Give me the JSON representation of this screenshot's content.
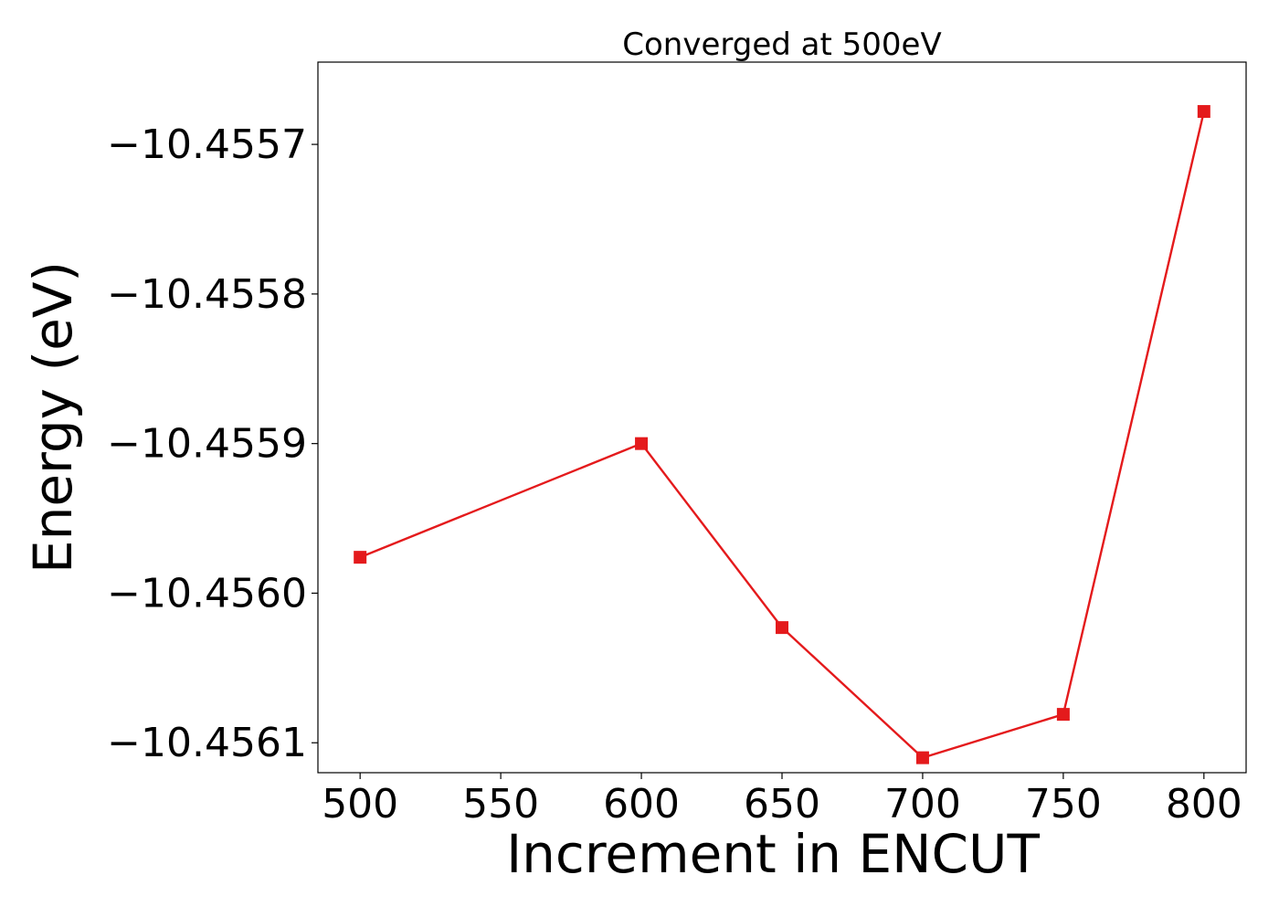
{
  "chart_data": {
    "type": "line",
    "title": "Converged at 500eV",
    "xlabel": "Increment in ENCUT",
    "ylabel": "Energy (eV)",
    "x": [
      500,
      600,
      650,
      700,
      750,
      800
    ],
    "series": [
      {
        "values": [
          -10.455976,
          -10.4559,
          -10.456023,
          -10.45611,
          -10.456081,
          -10.455678
        ],
        "color": "#e41a1c",
        "marker": "square"
      }
    ],
    "xticks": [
      500,
      550,
      600,
      650,
      700,
      750,
      800
    ],
    "xtick_labels": [
      "500",
      "550",
      "600",
      "650",
      "700",
      "750",
      "800"
    ],
    "yticks": [
      -10.4557,
      -10.4558,
      -10.4559,
      -10.456,
      -10.4561
    ],
    "ytick_labels": [
      "−10.4557",
      "−10.4558",
      "−10.4559",
      "−10.4560",
      "−10.4561"
    ],
    "xlim": [
      485,
      815
    ],
    "ylim": [
      -10.45612,
      -10.455645
    ],
    "grid": false,
    "legend": "none"
  }
}
